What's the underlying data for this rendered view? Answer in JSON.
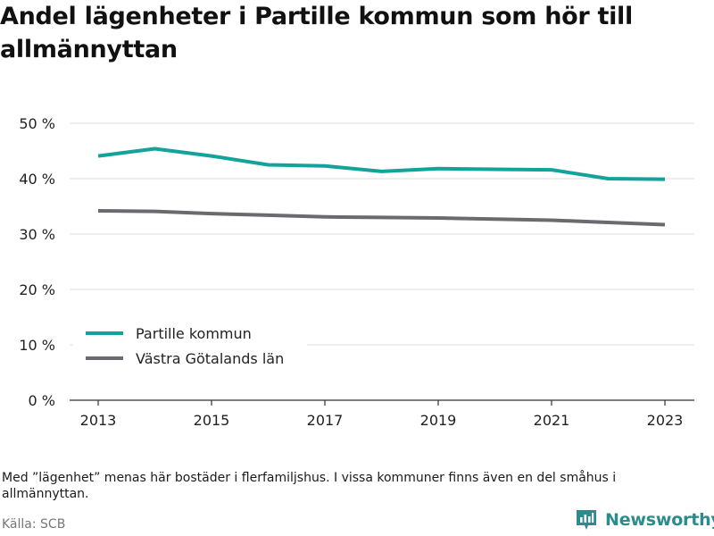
{
  "title": "Andel lägenheter i Partille kommun som hör till allmännyttan",
  "note": "Med ”lägenhet” menas här bostäder i flerfamiljshus. I vissa kommuner finns även en del småhus i allmännyttan.",
  "source": "Källa: SCB",
  "brand": {
    "name": "Newsworthy",
    "icon": "newsworthy-logo-icon",
    "color": "#2a8c8c"
  },
  "chart_data": {
    "type": "line",
    "title": "Andel lägenheter i Partille kommun som hör till allmännyttan",
    "xlabel": "",
    "ylabel": "",
    "x": [
      2013,
      2014,
      2015,
      2016,
      2017,
      2018,
      2019,
      2020,
      2021,
      2022,
      2023
    ],
    "x_ticks": [
      2013,
      2015,
      2017,
      2019,
      2021,
      2023
    ],
    "x_tick_labels": [
      "2013",
      "2015",
      "2017",
      "2019",
      "2021",
      "2023"
    ],
    "y_ticks": [
      0,
      10,
      20,
      30,
      40,
      50
    ],
    "y_tick_labels": [
      "0 %",
      "10 %",
      "20 %",
      "30 %",
      "40 %",
      "50 %"
    ],
    "ylim": [
      0,
      50
    ],
    "grid": true,
    "legend_position": "bottom-left",
    "series": [
      {
        "name": "Partille kommun",
        "color": "#13a39a",
        "values": [
          44.1,
          45.4,
          44.1,
          42.5,
          42.3,
          41.3,
          41.8,
          41.7,
          41.6,
          40.0,
          39.9
        ]
      },
      {
        "name": "Västra Götalands län",
        "color": "#6b6a6e",
        "values": [
          34.2,
          34.1,
          33.7,
          33.4,
          33.1,
          33.0,
          32.9,
          32.7,
          32.5,
          32.1,
          31.7
        ]
      }
    ]
  }
}
